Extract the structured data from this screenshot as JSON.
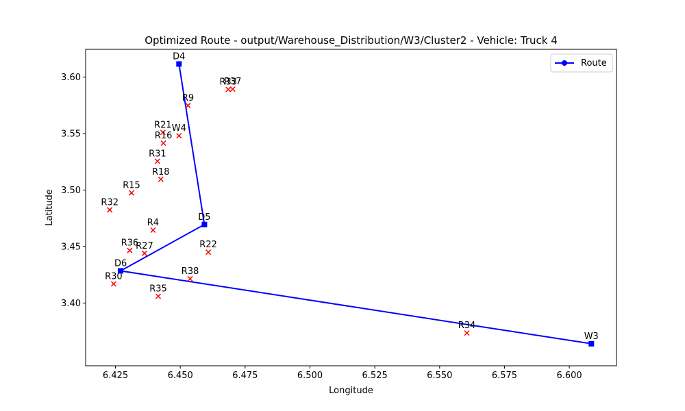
{
  "chart_data": {
    "type": "line",
    "title": "Optimized Route - output/Warehouse_Distribution/W3/Cluster2 - Vehicle: Truck 4",
    "xlabel": "Longitude",
    "ylabel": "Latitude",
    "xlim": [
      6.4135,
      6.6182
    ],
    "ylim": [
      3.3445,
      3.6245
    ],
    "xticks": [
      6.425,
      6.45,
      6.475,
      6.5,
      6.525,
      6.55,
      6.575,
      6.6
    ],
    "xtick_labels": [
      "6.425",
      "6.450",
      "6.475",
      "6.500",
      "6.525",
      "6.550",
      "6.575",
      "6.600"
    ],
    "yticks": [
      3.4,
      3.45,
      3.5,
      3.55,
      3.6
    ],
    "ytick_labels": [
      "3.40",
      "3.45",
      "3.50",
      "3.55",
      "3.60"
    ],
    "grid": false,
    "legend": {
      "position": "top-right",
      "entries": [
        "Route"
      ]
    },
    "route": {
      "name": "Route",
      "color": "#0000ff",
      "points": [
        {
          "label": "D4",
          "x": 6.4495,
          "y": 3.6115
        },
        {
          "label": "D5",
          "x": 6.4593,
          "y": 3.4695
        },
        {
          "label": "D6",
          "x": 6.427,
          "y": 3.4285
        },
        {
          "label": "W3",
          "x": 6.6085,
          "y": 3.364
        }
      ]
    },
    "stops": {
      "color": "#ff0000",
      "marker": "x",
      "points": [
        {
          "label": "R33",
          "x": 6.4685,
          "y": 3.589
        },
        {
          "label": "R37",
          "x": 6.4702,
          "y": 3.5893
        },
        {
          "label": "R9",
          "x": 6.453,
          "y": 3.5748
        },
        {
          "label": "R21",
          "x": 6.4433,
          "y": 3.551
        },
        {
          "label": "W4",
          "x": 6.4495,
          "y": 3.548
        },
        {
          "label": "R16",
          "x": 6.4435,
          "y": 3.5415
        },
        {
          "label": "R31",
          "x": 6.4412,
          "y": 3.5255
        },
        {
          "label": "R18",
          "x": 6.4425,
          "y": 3.5095
        },
        {
          "label": "R15",
          "x": 6.4312,
          "y": 3.4975
        },
        {
          "label": "R32",
          "x": 6.4228,
          "y": 3.4825
        },
        {
          "label": "R4",
          "x": 6.4395,
          "y": 3.4645
        },
        {
          "label": "R36",
          "x": 6.4305,
          "y": 3.4465
        },
        {
          "label": "R27",
          "x": 6.4362,
          "y": 3.444
        },
        {
          "label": "R22",
          "x": 6.4608,
          "y": 3.445
        },
        {
          "label": "R30",
          "x": 6.4243,
          "y": 3.417
        },
        {
          "label": "R38",
          "x": 6.4538,
          "y": 3.4215
        },
        {
          "label": "R35",
          "x": 6.4415,
          "y": 3.406
        },
        {
          "label": "R34",
          "x": 6.5605,
          "y": 3.3735
        }
      ]
    }
  }
}
